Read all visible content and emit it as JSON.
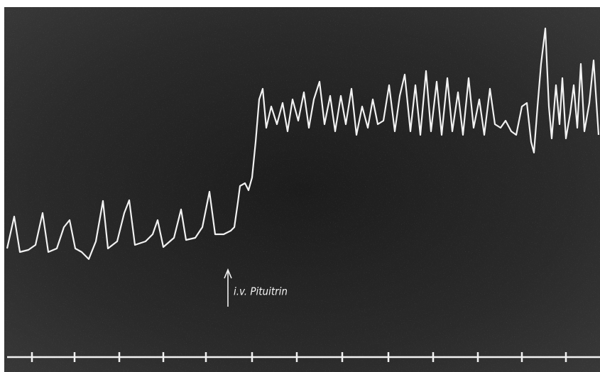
{
  "annotation": "i.v. Pituitrin"
}
